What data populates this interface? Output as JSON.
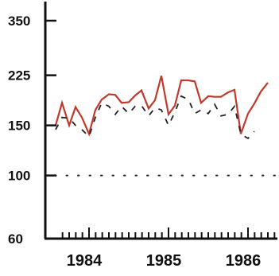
{
  "chart_data": {
    "type": "line",
    "title": "",
    "xlabel": "",
    "ylabel": "",
    "y_scale": "log",
    "ylim": [
      60,
      360
    ],
    "xlim": [
      1983.6,
      1986.6
    ],
    "y_ticks": [
      {
        "value": 350,
        "label": "350"
      },
      {
        "value": 225,
        "label": "225"
      },
      {
        "value": 150,
        "label": "150"
      },
      {
        "value": 100,
        "label": "100"
      },
      {
        "value": 60,
        "label": "60"
      }
    ],
    "x_ticks": [
      {
        "value": 1984,
        "label": "1984"
      },
      {
        "value": 1985,
        "label": "1985"
      },
      {
        "value": 1986,
        "label": "1986"
      }
    ],
    "reference_lines": [
      {
        "y": 100,
        "style": "dotted"
      }
    ],
    "series": [
      {
        "style": "solid",
        "color": "#c0392b",
        "x": [
          1983.58,
          1983.66,
          1983.75,
          1983.83,
          1983.91,
          1984.0,
          1984.08,
          1984.16,
          1984.25,
          1984.33,
          1984.41,
          1984.5,
          1984.58,
          1984.66,
          1984.75,
          1984.83,
          1984.91,
          1985.0,
          1985.08,
          1985.16,
          1985.25,
          1985.33,
          1985.41,
          1985.5,
          1985.58,
          1985.66,
          1985.75,
          1985.83,
          1985.91,
          1986.0,
          1986.08,
          1986.16,
          1986.25
        ],
        "values": [
          150,
          180,
          150,
          174,
          160,
          140,
          170,
          185,
          193,
          192,
          180,
          181,
          191,
          199,
          172,
          184,
          224,
          164,
          176,
          216,
          216,
          214,
          180,
          190,
          189,
          189,
          196,
          200,
          140,
          165,
          179,
          197,
          212
        ]
      },
      {
        "style": "dashed",
        "color": "#222222",
        "x": [
          1983.58,
          1983.66,
          1983.75,
          1983.83,
          1983.91,
          1984.0,
          1984.08,
          1984.16,
          1984.25,
          1984.33,
          1984.41,
          1984.5,
          1984.58,
          1984.66,
          1984.75,
          1984.83,
          1984.91,
          1985.0,
          1985.08,
          1985.16,
          1985.25,
          1985.33,
          1985.41,
          1985.5,
          1985.58,
          1985.66,
          1985.75,
          1985.83,
          1985.91,
          1986.0,
          1986.08
        ],
        "values": [
          145,
          160,
          159,
          150,
          145,
          137,
          160,
          180,
          175,
          164,
          175,
          165,
          175,
          176,
          162,
          173,
          170,
          150,
          167,
          190,
          185,
          165,
          170,
          165,
          178,
          162,
          164,
          175,
          140,
          135,
          143
        ]
      }
    ]
  }
}
